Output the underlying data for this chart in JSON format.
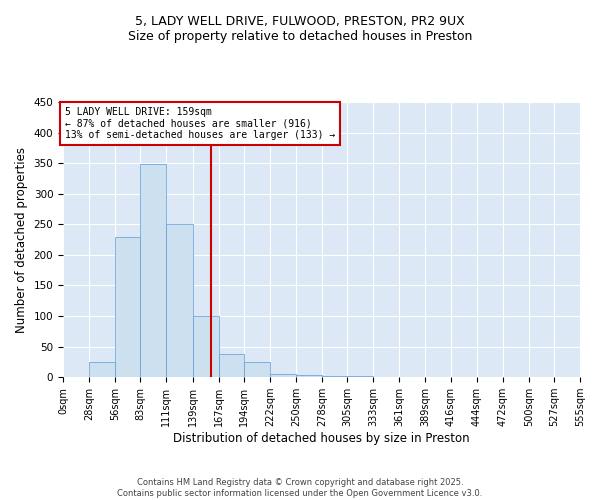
{
  "title_line1": "5, LADY WELL DRIVE, FULWOOD, PRESTON, PR2 9UX",
  "title_line2": "Size of property relative to detached houses in Preston",
  "xlabel": "Distribution of detached houses by size in Preston",
  "ylabel": "Number of detached properties",
  "bin_edges": [
    0,
    28,
    56,
    83,
    111,
    139,
    167,
    194,
    222,
    250,
    278,
    305,
    333,
    361,
    389,
    416,
    444,
    472,
    500,
    527,
    555
  ],
  "bar_heights": [
    1,
    25,
    230,
    348,
    250,
    100,
    38,
    25,
    5,
    3,
    2,
    2,
    1,
    1,
    1,
    1,
    0,
    0,
    0,
    1
  ],
  "bar_color": "#cce0f0",
  "bar_edge_color": "#5b9bd5",
  "property_size": 159,
  "vline_x": 159,
  "vline_color": "#cc0000",
  "annotation_box_color": "#cc0000",
  "annotation_text_line1": "5 LADY WELL DRIVE: 159sqm",
  "annotation_text_line2": "← 87% of detached houses are smaller (916)",
  "annotation_text_line3": "13% of semi-detached houses are larger (133) →",
  "ylim": [
    0,
    450
  ],
  "yticks": [
    0,
    50,
    100,
    150,
    200,
    250,
    300,
    350,
    400,
    450
  ],
  "background_color": "#dce8f5",
  "figure_color": "#ffffff",
  "footer_line1": "Contains HM Land Registry data © Crown copyright and database right 2025.",
  "footer_line2": "Contains public sector information licensed under the Open Government Licence v3.0."
}
